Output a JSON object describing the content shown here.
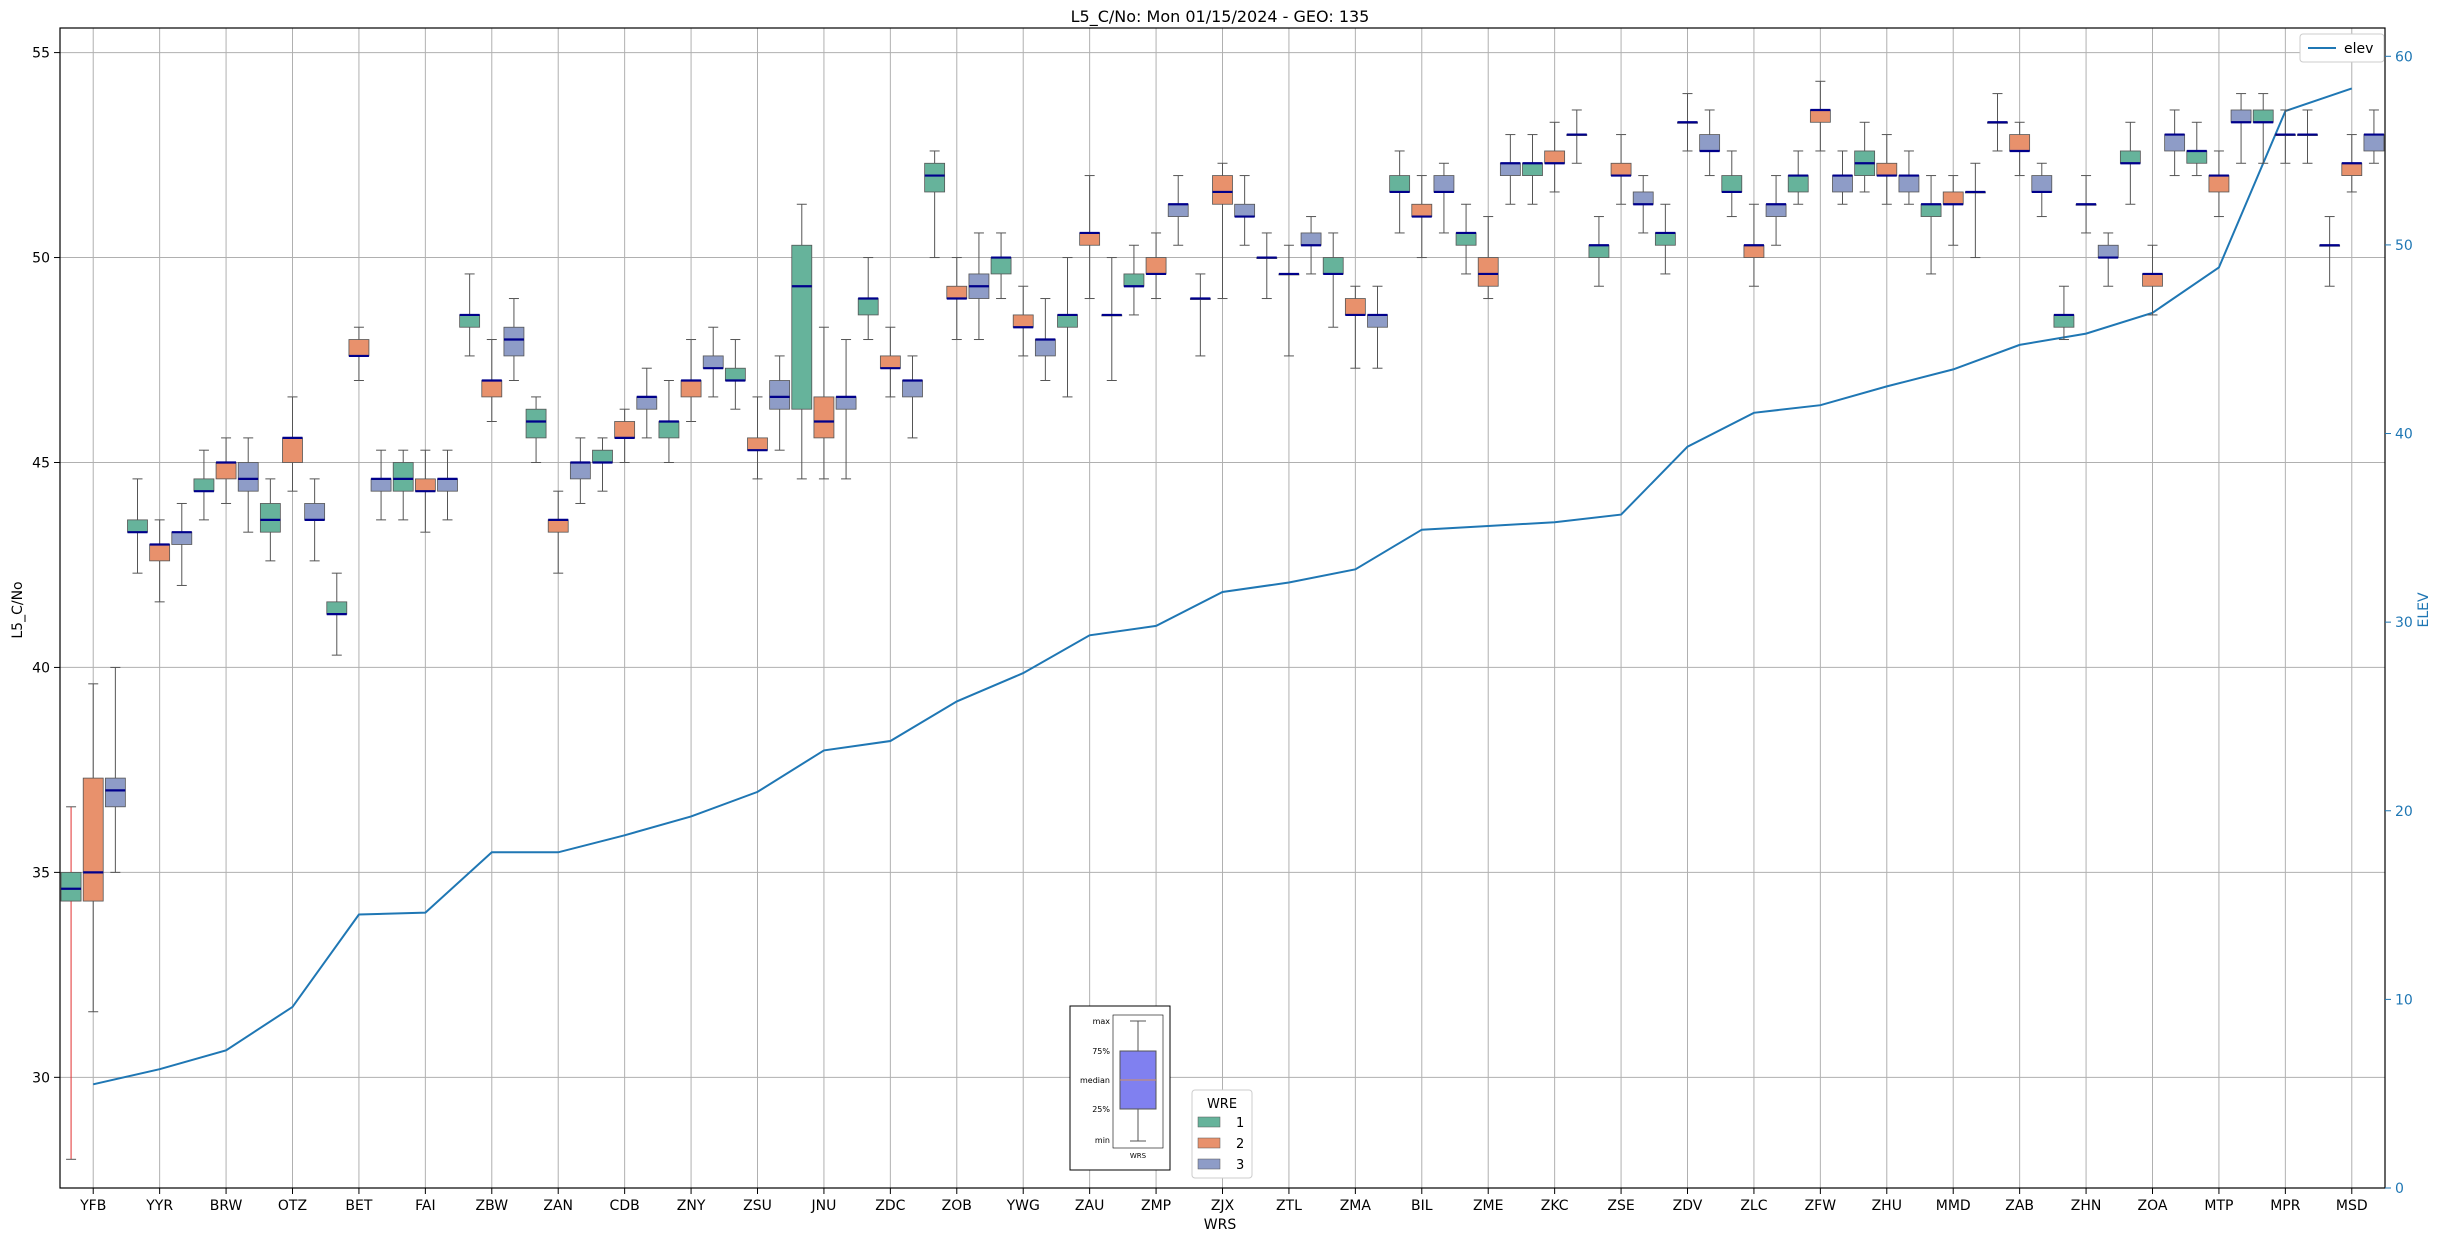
{
  "chart_data": {
    "type": "box",
    "title": "L5_C/No: Mon 01/15/2024 - GEO: 135",
    "xlabel": "WRS",
    "ylabel": "L5_C/No",
    "y2label": "ELEV",
    "ylim": [
      27.3,
      55.6
    ],
    "y2lim": [
      0,
      61.5
    ],
    "yticks": [
      30,
      35,
      40,
      45,
      50,
      55
    ],
    "y2ticks": [
      0,
      10,
      20,
      30,
      40,
      50,
      60
    ],
    "grid": true,
    "categories": [
      "YFB",
      "YYR",
      "BRW",
      "OTZ",
      "BET",
      "FAI",
      "ZBW",
      "ZAN",
      "CDB",
      "ZNY",
      "ZSU",
      "JNU",
      "ZDC",
      "ZOB",
      "YWG",
      "ZAU",
      "ZMP",
      "ZJX",
      "ZTL",
      "ZMA",
      "BIL",
      "ZME",
      "ZKC",
      "ZSE",
      "ZDV",
      "ZLC",
      "ZFW",
      "ZHU",
      "MMD",
      "ZAB",
      "ZHN",
      "ZOA",
      "MTP",
      "MPR",
      "MSD"
    ],
    "groups": [
      {
        "name": "1",
        "color": "#66b39b"
      },
      {
        "name": "2",
        "color": "#e8916c"
      },
      {
        "name": "3",
        "color": "#8e9cc7"
      }
    ],
    "boxes": [
      {
        "wrs": "YFB",
        "wre": "1",
        "min": 28.0,
        "q1": 34.3,
        "median": 34.6,
        "q3": 35.0,
        "max": 36.6
      },
      {
        "wrs": "YFB",
        "wre": "2",
        "min": 31.6,
        "q1": 34.3,
        "median": 35.0,
        "q3": 37.3,
        "max": 39.6
      },
      {
        "wrs": "YFB",
        "wre": "3",
        "min": 35.0,
        "q1": 36.6,
        "median": 37.0,
        "q3": 37.3,
        "max": 40.0
      },
      {
        "wrs": "YYR",
        "wre": "1",
        "min": 42.3,
        "q1": 43.3,
        "median": 43.3,
        "q3": 43.6,
        "max": 44.6
      },
      {
        "wrs": "YYR",
        "wre": "2",
        "min": 41.6,
        "q1": 42.6,
        "median": 43.0,
        "q3": 43.0,
        "max": 43.6
      },
      {
        "wrs": "YYR",
        "wre": "3",
        "min": 42.0,
        "q1": 43.0,
        "median": 43.3,
        "q3": 43.3,
        "max": 44.0
      },
      {
        "wrs": "BRW",
        "wre": "1",
        "min": 43.6,
        "q1": 44.3,
        "median": 44.3,
        "q3": 44.6,
        "max": 45.3
      },
      {
        "wrs": "BRW",
        "wre": "2",
        "min": 44.0,
        "q1": 44.6,
        "median": 45.0,
        "q3": 45.0,
        "max": 45.6
      },
      {
        "wrs": "BRW",
        "wre": "3",
        "min": 43.3,
        "q1": 44.3,
        "median": 44.6,
        "q3": 45.0,
        "max": 45.6
      },
      {
        "wrs": "OTZ",
        "wre": "1",
        "min": 42.6,
        "q1": 43.3,
        "median": 43.6,
        "q3": 44.0,
        "max": 44.6
      },
      {
        "wrs": "OTZ",
        "wre": "2",
        "min": 44.3,
        "q1": 45.0,
        "median": 45.6,
        "q3": 45.6,
        "max": 46.6
      },
      {
        "wrs": "OTZ",
        "wre": "3",
        "min": 42.6,
        "q1": 43.6,
        "median": 43.6,
        "q3": 44.0,
        "max": 44.6
      },
      {
        "wrs": "BET",
        "wre": "1",
        "min": 40.3,
        "q1": 41.3,
        "median": 41.3,
        "q3": 41.6,
        "max": 42.3
      },
      {
        "wrs": "BET",
        "wre": "2",
        "min": 47.0,
        "q1": 47.6,
        "median": 47.6,
        "q3": 48.0,
        "max": 48.3
      },
      {
        "wrs": "BET",
        "wre": "3",
        "min": 43.6,
        "q1": 44.3,
        "median": 44.6,
        "q3": 44.6,
        "max": 45.3
      },
      {
        "wrs": "FAI",
        "wre": "1",
        "min": 43.6,
        "q1": 44.3,
        "median": 44.6,
        "q3": 45.0,
        "max": 45.3
      },
      {
        "wrs": "FAI",
        "wre": "2",
        "min": 43.3,
        "q1": 44.3,
        "median": 44.3,
        "q3": 44.6,
        "max": 45.3
      },
      {
        "wrs": "FAI",
        "wre": "3",
        "min": 43.6,
        "q1": 44.3,
        "median": 44.6,
        "q3": 44.6,
        "max": 45.3
      },
      {
        "wrs": "ZBW",
        "wre": "1",
        "min": 47.6,
        "q1": 48.3,
        "median": 48.6,
        "q3": 48.6,
        "max": 49.6
      },
      {
        "wrs": "ZBW",
        "wre": "2",
        "min": 46.0,
        "q1": 46.6,
        "median": 47.0,
        "q3": 47.0,
        "max": 48.0
      },
      {
        "wrs": "ZBW",
        "wre": "3",
        "min": 47.0,
        "q1": 47.6,
        "median": 48.0,
        "q3": 48.3,
        "max": 49.0
      },
      {
        "wrs": "ZAN",
        "wre": "1",
        "min": 45.0,
        "q1": 45.6,
        "median": 46.0,
        "q3": 46.3,
        "max": 46.6
      },
      {
        "wrs": "ZAN",
        "wre": "2",
        "min": 42.3,
        "q1": 43.3,
        "median": 43.6,
        "q3": 43.6,
        "max": 44.3
      },
      {
        "wrs": "ZAN",
        "wre": "3",
        "min": 44.0,
        "q1": 44.6,
        "median": 45.0,
        "q3": 45.0,
        "max": 45.6
      },
      {
        "wrs": "CDB",
        "wre": "1",
        "min": 44.3,
        "q1": 45.0,
        "median": 45.0,
        "q3": 45.3,
        "max": 45.6
      },
      {
        "wrs": "CDB",
        "wre": "2",
        "min": 45.0,
        "q1": 45.6,
        "median": 45.6,
        "q3": 46.0,
        "max": 46.3
      },
      {
        "wrs": "CDB",
        "wre": "3",
        "min": 45.6,
        "q1": 46.3,
        "median": 46.6,
        "q3": 46.6,
        "max": 47.3
      },
      {
        "wrs": "ZNY",
        "wre": "1",
        "min": 45.0,
        "q1": 45.6,
        "median": 46.0,
        "q3": 46.0,
        "max": 47.0
      },
      {
        "wrs": "ZNY",
        "wre": "2",
        "min": 46.0,
        "q1": 46.6,
        "median": 47.0,
        "q3": 47.0,
        "max": 48.0
      },
      {
        "wrs": "ZNY",
        "wre": "3",
        "min": 46.6,
        "q1": 47.3,
        "median": 47.3,
        "q3": 47.6,
        "max": 48.3
      },
      {
        "wrs": "ZSU",
        "wre": "1",
        "min": 46.3,
        "q1": 47.0,
        "median": 47.0,
        "q3": 47.3,
        "max": 48.0
      },
      {
        "wrs": "ZSU",
        "wre": "2",
        "min": 44.6,
        "q1": 45.3,
        "median": 45.3,
        "q3": 45.6,
        "max": 46.6
      },
      {
        "wrs": "ZSU",
        "wre": "3",
        "min": 45.3,
        "q1": 46.3,
        "median": 46.6,
        "q3": 47.0,
        "max": 47.6
      },
      {
        "wrs": "JNU",
        "wre": "1",
        "min": 44.6,
        "q1": 46.3,
        "median": 49.3,
        "q3": 50.3,
        "max": 51.3
      },
      {
        "wrs": "JNU",
        "wre": "2",
        "min": 44.6,
        "q1": 45.6,
        "median": 46.0,
        "q3": 46.6,
        "max": 48.3
      },
      {
        "wrs": "JNU",
        "wre": "3",
        "min": 44.6,
        "q1": 46.3,
        "median": 46.6,
        "q3": 46.6,
        "max": 48.0
      },
      {
        "wrs": "ZDC",
        "wre": "1",
        "min": 48.0,
        "q1": 48.6,
        "median": 49.0,
        "q3": 49.0,
        "max": 50.0
      },
      {
        "wrs": "ZDC",
        "wre": "2",
        "min": 46.6,
        "q1": 47.3,
        "median": 47.3,
        "q3": 47.6,
        "max": 48.3
      },
      {
        "wrs": "ZDC",
        "wre": "3",
        "min": 45.6,
        "q1": 46.6,
        "median": 47.0,
        "q3": 47.0,
        "max": 47.6
      },
      {
        "wrs": "ZOB",
        "wre": "1",
        "min": 50.0,
        "q1": 51.6,
        "median": 52.0,
        "q3": 52.3,
        "max": 52.6
      },
      {
        "wrs": "ZOB",
        "wre": "2",
        "min": 48.0,
        "q1": 49.0,
        "median": 49.0,
        "q3": 49.3,
        "max": 50.0
      },
      {
        "wrs": "ZOB",
        "wre": "3",
        "min": 48.0,
        "q1": 49.0,
        "median": 49.3,
        "q3": 49.6,
        "max": 50.6
      },
      {
        "wrs": "YWG",
        "wre": "1",
        "min": 49.0,
        "q1": 49.6,
        "median": 50.0,
        "q3": 50.0,
        "max": 50.6
      },
      {
        "wrs": "YWG",
        "wre": "2",
        "min": 47.6,
        "q1": 48.3,
        "median": 48.3,
        "q3": 48.6,
        "max": 49.3
      },
      {
        "wrs": "YWG",
        "wre": "3",
        "min": 47.0,
        "q1": 47.6,
        "median": 48.0,
        "q3": 48.0,
        "max": 49.0
      },
      {
        "wrs": "ZAU",
        "wre": "1",
        "min": 46.6,
        "q1": 48.3,
        "median": 48.6,
        "q3": 48.6,
        "max": 50.0
      },
      {
        "wrs": "ZAU",
        "wre": "2",
        "min": 49.0,
        "q1": 50.3,
        "median": 50.6,
        "q3": 50.6,
        "max": 52.0
      },
      {
        "wrs": "ZAU",
        "wre": "3",
        "min": 47.0,
        "q1": 48.6,
        "median": 48.6,
        "q3": 48.6,
        "max": 50.0
      },
      {
        "wrs": "ZMP",
        "wre": "1",
        "min": 48.6,
        "q1": 49.3,
        "median": 49.3,
        "q3": 49.6,
        "max": 50.3
      },
      {
        "wrs": "ZMP",
        "wre": "2",
        "min": 49.0,
        "q1": 49.6,
        "median": 49.6,
        "q3": 50.0,
        "max": 50.6
      },
      {
        "wrs": "ZMP",
        "wre": "3",
        "min": 50.3,
        "q1": 51.0,
        "median": 51.3,
        "q3": 51.3,
        "max": 52.0
      },
      {
        "wrs": "ZJX",
        "wre": "1",
        "min": 47.6,
        "q1": 49.0,
        "median": 49.0,
        "q3": 49.0,
        "max": 49.6
      },
      {
        "wrs": "ZJX",
        "wre": "2",
        "min": 49.0,
        "q1": 51.3,
        "median": 51.6,
        "q3": 52.0,
        "max": 52.3
      },
      {
        "wrs": "ZJX",
        "wre": "3",
        "min": 50.3,
        "q1": 51.0,
        "median": 51.0,
        "q3": 51.3,
        "max": 52.0
      },
      {
        "wrs": "ZTL",
        "wre": "1",
        "min": 49.0,
        "q1": 50.0,
        "median": 50.0,
        "q3": 50.0,
        "max": 50.6
      },
      {
        "wrs": "ZTL",
        "wre": "2",
        "min": 47.6,
        "q1": 49.6,
        "median": 49.6,
        "q3": 49.6,
        "max": 50.3
      },
      {
        "wrs": "ZTL",
        "wre": "3",
        "min": 49.6,
        "q1": 50.3,
        "median": 50.3,
        "q3": 50.6,
        "max": 51.0
      },
      {
        "wrs": "ZMA",
        "wre": "1",
        "min": 48.3,
        "q1": 49.6,
        "median": 49.6,
        "q3": 50.0,
        "max": 50.6
      },
      {
        "wrs": "ZMA",
        "wre": "2",
        "min": 47.3,
        "q1": 48.6,
        "median": 48.6,
        "q3": 49.0,
        "max": 49.3
      },
      {
        "wrs": "ZMA",
        "wre": "3",
        "min": 47.3,
        "q1": 48.3,
        "median": 48.6,
        "q3": 48.6,
        "max": 49.3
      },
      {
        "wrs": "BIL",
        "wre": "1",
        "min": 50.6,
        "q1": 51.6,
        "median": 51.6,
        "q3": 52.0,
        "max": 52.6
      },
      {
        "wrs": "BIL",
        "wre": "2",
        "min": 50.0,
        "q1": 51.0,
        "median": 51.0,
        "q3": 51.3,
        "max": 52.0
      },
      {
        "wrs": "BIL",
        "wre": "3",
        "min": 50.6,
        "q1": 51.6,
        "median": 51.6,
        "q3": 52.0,
        "max": 52.3
      },
      {
        "wrs": "ZME",
        "wre": "1",
        "min": 49.6,
        "q1": 50.3,
        "median": 50.6,
        "q3": 50.6,
        "max": 51.3
      },
      {
        "wrs": "ZME",
        "wre": "2",
        "min": 49.0,
        "q1": 49.3,
        "median": 49.6,
        "q3": 50.0,
        "max": 51.0
      },
      {
        "wrs": "ZME",
        "wre": "3",
        "min": 51.3,
        "q1": 52.0,
        "median": 52.3,
        "q3": 52.3,
        "max": 53.0
      },
      {
        "wrs": "ZKC",
        "wre": "1",
        "min": 51.3,
        "q1": 52.0,
        "median": 52.3,
        "q3": 52.3,
        "max": 53.0
      },
      {
        "wrs": "ZKC",
        "wre": "2",
        "min": 51.6,
        "q1": 52.3,
        "median": 52.3,
        "q3": 52.6,
        "max": 53.3
      },
      {
        "wrs": "ZKC",
        "wre": "3",
        "min": 52.3,
        "q1": 53.0,
        "median": 53.0,
        "q3": 53.0,
        "max": 53.6
      },
      {
        "wrs": "ZSE",
        "wre": "1",
        "min": 49.3,
        "q1": 50.0,
        "median": 50.3,
        "q3": 50.3,
        "max": 51.0
      },
      {
        "wrs": "ZSE",
        "wre": "2",
        "min": 51.3,
        "q1": 52.0,
        "median": 52.0,
        "q3": 52.3,
        "max": 53.0
      },
      {
        "wrs": "ZSE",
        "wre": "3",
        "min": 50.6,
        "q1": 51.3,
        "median": 51.3,
        "q3": 51.6,
        "max": 52.0
      },
      {
        "wrs": "ZDV",
        "wre": "1",
        "min": 49.6,
        "q1": 50.3,
        "median": 50.6,
        "q3": 50.6,
        "max": 51.3
      },
      {
        "wrs": "ZDV",
        "wre": "2",
        "min": 52.6,
        "q1": 53.3,
        "median": 53.3,
        "q3": 53.3,
        "max": 54.0
      },
      {
        "wrs": "ZDV",
        "wre": "3",
        "min": 52.0,
        "q1": 52.6,
        "median": 52.6,
        "q3": 53.0,
        "max": 53.6
      },
      {
        "wrs": "ZLC",
        "wre": "1",
        "min": 51.0,
        "q1": 51.6,
        "median": 51.6,
        "q3": 52.0,
        "max": 52.6
      },
      {
        "wrs": "ZLC",
        "wre": "2",
        "min": 49.3,
        "q1": 50.0,
        "median": 50.3,
        "q3": 50.3,
        "max": 51.3
      },
      {
        "wrs": "ZLC",
        "wre": "3",
        "min": 50.3,
        "q1": 51.0,
        "median": 51.3,
        "q3": 51.3,
        "max": 52.0
      },
      {
        "wrs": "ZFW",
        "wre": "1",
        "min": 51.3,
        "q1": 51.6,
        "median": 52.0,
        "q3": 52.0,
        "max": 52.6
      },
      {
        "wrs": "ZFW",
        "wre": "2",
        "min": 52.6,
        "q1": 53.3,
        "median": 53.6,
        "q3": 53.6,
        "max": 54.3
      },
      {
        "wrs": "ZFW",
        "wre": "3",
        "min": 51.3,
        "q1": 51.6,
        "median": 52.0,
        "q3": 52.0,
        "max": 52.6
      },
      {
        "wrs": "ZHU",
        "wre": "1",
        "min": 51.6,
        "q1": 52.0,
        "median": 52.3,
        "q3": 52.6,
        "max": 53.3
      },
      {
        "wrs": "ZHU",
        "wre": "2",
        "min": 51.3,
        "q1": 52.0,
        "median": 52.0,
        "q3": 52.3,
        "max": 53.0
      },
      {
        "wrs": "ZHU",
        "wre": "3",
        "min": 51.3,
        "q1": 51.6,
        "median": 52.0,
        "q3": 52.0,
        "max": 52.6
      },
      {
        "wrs": "MMD",
        "wre": "1",
        "min": 49.6,
        "q1": 51.0,
        "median": 51.3,
        "q3": 51.3,
        "max": 52.0
      },
      {
        "wrs": "MMD",
        "wre": "2",
        "min": 50.3,
        "q1": 51.3,
        "median": 51.3,
        "q3": 51.6,
        "max": 52.0
      },
      {
        "wrs": "MMD",
        "wre": "3",
        "min": 50.0,
        "q1": 51.6,
        "median": 51.6,
        "q3": 51.6,
        "max": 52.3
      },
      {
        "wrs": "ZAB",
        "wre": "1",
        "min": 52.6,
        "q1": 53.3,
        "median": 53.3,
        "q3": 53.3,
        "max": 54.0
      },
      {
        "wrs": "ZAB",
        "wre": "2",
        "min": 52.0,
        "q1": 52.6,
        "median": 52.6,
        "q3": 53.0,
        "max": 53.3
      },
      {
        "wrs": "ZAB",
        "wre": "3",
        "min": 51.0,
        "q1": 51.6,
        "median": 51.6,
        "q3": 52.0,
        "max": 52.3
      },
      {
        "wrs": "ZHN",
        "wre": "1",
        "min": 48.0,
        "q1": 48.3,
        "median": 48.6,
        "q3": 48.6,
        "max": 49.3
      },
      {
        "wrs": "ZHN",
        "wre": "2",
        "min": 50.6,
        "q1": 51.3,
        "median": 51.3,
        "q3": 51.3,
        "max": 52.0
      },
      {
        "wrs": "ZHN",
        "wre": "3",
        "min": 49.3,
        "q1": 50.0,
        "median": 50.0,
        "q3": 50.3,
        "max": 50.6
      },
      {
        "wrs": "ZOA",
        "wre": "1",
        "min": 51.3,
        "q1": 52.3,
        "median": 52.3,
        "q3": 52.6,
        "max": 53.3
      },
      {
        "wrs": "ZOA",
        "wre": "2",
        "min": 48.6,
        "q1": 49.3,
        "median": 49.6,
        "q3": 49.6,
        "max": 50.3
      },
      {
        "wrs": "ZOA",
        "wre": "3",
        "min": 52.0,
        "q1": 52.6,
        "median": 53.0,
        "q3": 53.0,
        "max": 53.6
      },
      {
        "wrs": "MTP",
        "wre": "1",
        "min": 52.0,
        "q1": 52.3,
        "median": 52.6,
        "q3": 52.6,
        "max": 53.3
      },
      {
        "wrs": "MTP",
        "wre": "2",
        "min": 51.0,
        "q1": 51.6,
        "median": 52.0,
        "q3": 52.0,
        "max": 52.6
      },
      {
        "wrs": "MTP",
        "wre": "3",
        "min": 52.3,
        "q1": 53.3,
        "median": 53.3,
        "q3": 53.6,
        "max": 54.0
      },
      {
        "wrs": "MPR",
        "wre": "1",
        "min": 52.3,
        "q1": 53.3,
        "median": 53.3,
        "q3": 53.6,
        "max": 54.0
      },
      {
        "wrs": "MPR",
        "wre": "2",
        "min": 52.3,
        "q1": 53.0,
        "median": 53.0,
        "q3": 53.0,
        "max": 53.6
      },
      {
        "wrs": "MPR",
        "wre": "3",
        "min": 52.3,
        "q1": 53.0,
        "median": 53.0,
        "q3": 53.0,
        "max": 53.6
      },
      {
        "wrs": "MSD",
        "wre": "1",
        "min": 49.3,
        "q1": 50.3,
        "median": 50.3,
        "q3": 50.3,
        "max": 51.0
      },
      {
        "wrs": "MSD",
        "wre": "2",
        "min": 51.6,
        "q1": 52.0,
        "median": 52.3,
        "q3": 52.3,
        "max": 53.0
      },
      {
        "wrs": "MSD",
        "wre": "3",
        "min": 52.3,
        "q1": 52.6,
        "median": 53.0,
        "q3": 53.0,
        "max": 53.6
      }
    ],
    "elev_series": {
      "name": "elev",
      "color": "#1f77b4",
      "values": [
        5.5,
        6.3,
        7.3,
        9.6,
        14.5,
        14.6,
        17.8,
        17.8,
        18.7,
        19.7,
        21.0,
        23.2,
        23.7,
        25.8,
        27.3,
        29.3,
        29.8,
        31.6,
        32.1,
        32.8,
        34.9,
        35.1,
        35.3,
        35.7,
        39.3,
        41.1,
        41.5,
        42.5,
        43.4,
        44.7,
        45.3,
        46.4,
        48.8,
        57.1,
        58.3
      ]
    },
    "legend_elev": {
      "label": "elev",
      "placement": "top-right"
    },
    "legend_wre": {
      "title": "WRE",
      "entries": [
        "1",
        "2",
        "3"
      ],
      "placement": "bottom-center"
    },
    "key_labels": [
      "max",
      "75%",
      "median",
      "25%",
      "min",
      "WRS"
    ]
  }
}
